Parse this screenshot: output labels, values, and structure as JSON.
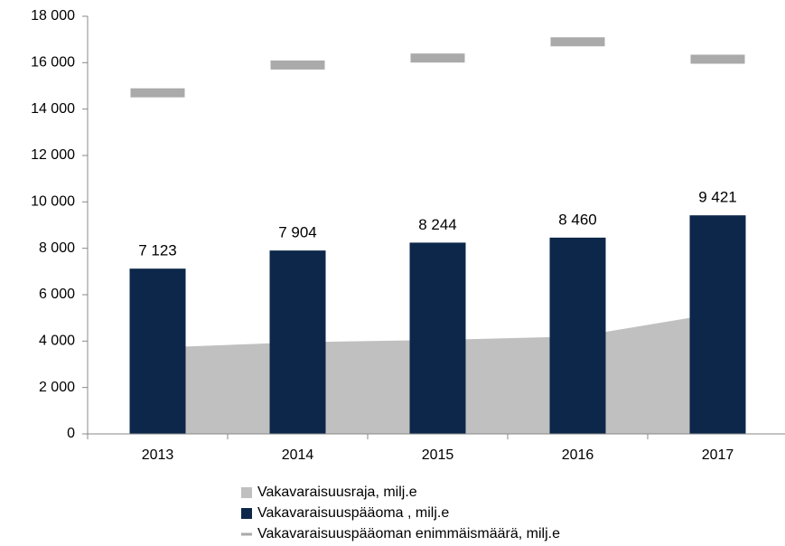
{
  "chart_data": {
    "type": "bar",
    "categories": [
      "2013",
      "2014",
      "2015",
      "2016",
      "2017"
    ],
    "series": [
      {
        "name": "Vakavaraisuusraja, milj.e",
        "kind": "area",
        "color": "#c0c0c0",
        "values": [
          3720,
          3950,
          4050,
          4200,
          5200
        ]
      },
      {
        "name": "Vakavaraisuuspääoma , milj.e",
        "kind": "bar",
        "color": "#0c2749",
        "values": [
          7123,
          7904,
          8244,
          8460,
          9421
        ],
        "value_labels": [
          "7 123",
          "7 904",
          "8 244",
          "8 460",
          "9 421"
        ]
      },
      {
        "name": "Vakavaraisuuspääoman enimmäismäärä, milj.e",
        "kind": "marker",
        "color": "#aaaaaa",
        "values": [
          14700,
          15900,
          16200,
          16900,
          16150
        ]
      }
    ],
    "ylim": [
      0,
      18000
    ],
    "yticks": [
      0,
      {
        "value": 2000,
        "label": "2 000"
      },
      {
        "value": 4000,
        "label": "4 000"
      },
      {
        "value": 6000,
        "label": "6 000"
      },
      {
        "value": 8000,
        "label": "8 000"
      },
      {
        "value": 10000,
        "label": "10 000"
      },
      {
        "value": 12000,
        "label": "12 000"
      },
      {
        "value": 14000,
        "label": "14 000"
      },
      {
        "value": 16000,
        "label": "16 000"
      },
      {
        "value": 18000,
        "label": "18 000"
      }
    ],
    "legend": "bottom"
  }
}
